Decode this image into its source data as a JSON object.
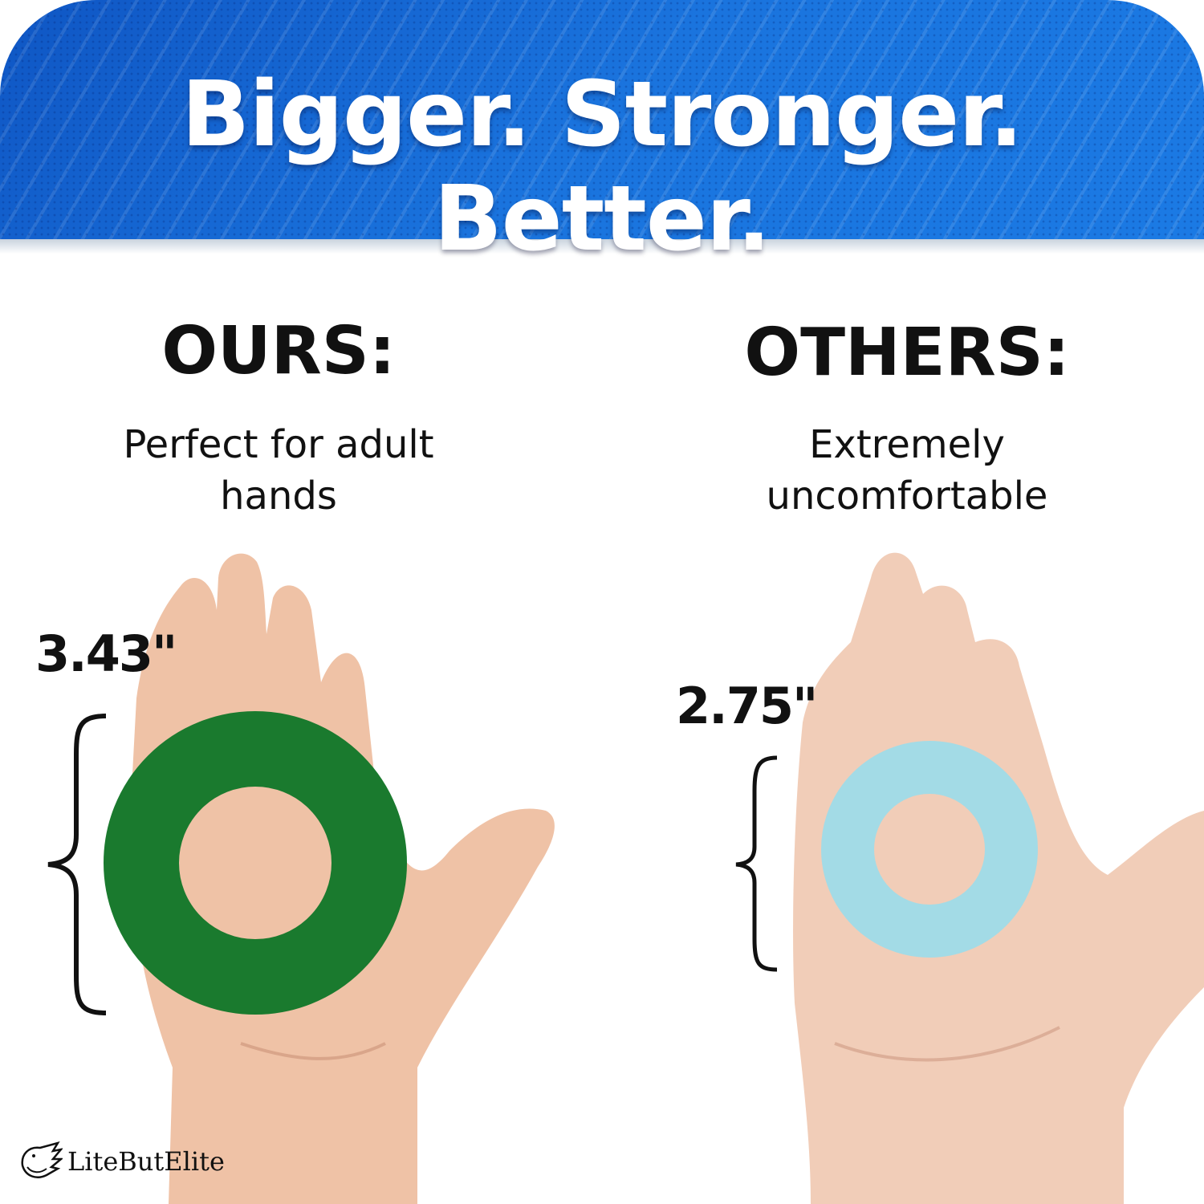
{
  "headline": "Bigger. Stronger. Better.",
  "ours": {
    "title": "OURS:",
    "subtitle_line1": "Perfect for adult",
    "subtitle_line2": "hands",
    "measurement": "3.43\"",
    "ring_color": "#1a7a2e"
  },
  "others": {
    "title": "OTHERS:",
    "subtitle_line1": "Extremely",
    "subtitle_line2": "uncomfortable",
    "measurement": "2.75\"",
    "ring_color": "#a3dbe6"
  },
  "brand": {
    "name": "LiteButElite",
    "logo_icon": "eagle-icon"
  },
  "colors": {
    "banner": "#1a6fd8",
    "skin": "#efc2a6"
  }
}
